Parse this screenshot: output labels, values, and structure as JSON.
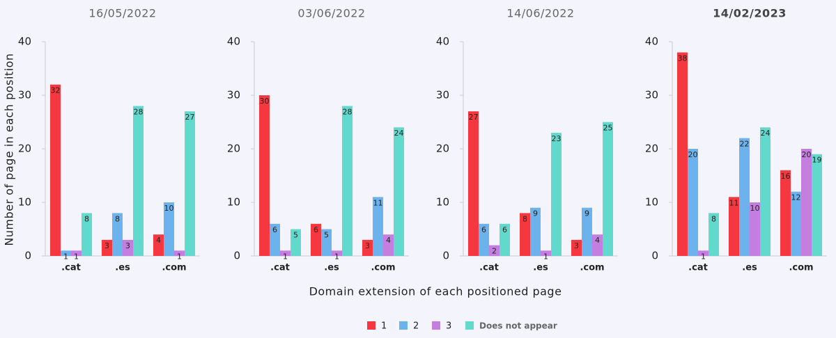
{
  "ylabel": "Number of page in each position",
  "xlabel": "Domain extension of each positioned page",
  "chart_data": [
    {
      "type": "bar",
      "title": "16/05/2022",
      "categories": [
        ".cat",
        ".es",
        ".com"
      ],
      "ylim": [
        0,
        40
      ],
      "yticks": [
        0,
        10,
        20,
        30,
        40
      ],
      "series": [
        {
          "name": "1",
          "color": "#f5373f",
          "values": [
            32,
            3,
            4
          ]
        },
        {
          "name": "2",
          "color": "#6cb2ec",
          "values": [
            1,
            8,
            10
          ]
        },
        {
          "name": "3",
          "color": "#c47ee0",
          "values": [
            1,
            3,
            1
          ]
        },
        {
          "name": "Does not appear",
          "color": "#62d9cd",
          "values": [
            8,
            28,
            27
          ]
        }
      ]
    },
    {
      "type": "bar",
      "title": "03/06/2022",
      "categories": [
        ".cat",
        ".es",
        ".com"
      ],
      "ylim": [
        0,
        40
      ],
      "yticks": [
        0,
        10,
        20,
        30,
        40
      ],
      "series": [
        {
          "name": "1",
          "color": "#f5373f",
          "values": [
            30,
            6,
            3
          ]
        },
        {
          "name": "2",
          "color": "#6cb2ec",
          "values": [
            6,
            5,
            11
          ]
        },
        {
          "name": "3",
          "color": "#c47ee0",
          "values": [
            1,
            1,
            4
          ]
        },
        {
          "name": "Does not appear",
          "color": "#62d9cd",
          "values": [
            5,
            28,
            24
          ]
        }
      ]
    },
    {
      "type": "bar",
      "title": "14/06/2022",
      "categories": [
        ".cat",
        ".es",
        ".com"
      ],
      "ylim": [
        0,
        40
      ],
      "yticks": [
        0,
        10,
        20,
        30,
        40
      ],
      "series": [
        {
          "name": "1",
          "color": "#f5373f",
          "values": [
            27,
            8,
            3
          ]
        },
        {
          "name": "2",
          "color": "#6cb2ec",
          "values": [
            6,
            9,
            9
          ]
        },
        {
          "name": "3",
          "color": "#c47ee0",
          "values": [
            2,
            1,
            4
          ]
        },
        {
          "name": "Does not appear",
          "color": "#62d9cd",
          "values": [
            6,
            23,
            25
          ]
        }
      ]
    },
    {
      "type": "bar",
      "title": "14/02/2023",
      "title_bold": true,
      "categories": [
        ".cat",
        ".es",
        ".com"
      ],
      "ylim": [
        0,
        40
      ],
      "yticks": [
        0,
        10,
        20,
        30,
        40
      ],
      "series": [
        {
          "name": "1",
          "color": "#f5373f",
          "values": [
            38,
            11,
            16
          ]
        },
        {
          "name": "2",
          "color": "#6cb2ec",
          "values": [
            20,
            22,
            12
          ]
        },
        {
          "name": "3",
          "color": "#c47ee0",
          "values": [
            1,
            10,
            20
          ]
        },
        {
          "name": "Does not appear",
          "color": "#62d9cd",
          "values": [
            8,
            24,
            19
          ]
        }
      ]
    }
  ]
}
